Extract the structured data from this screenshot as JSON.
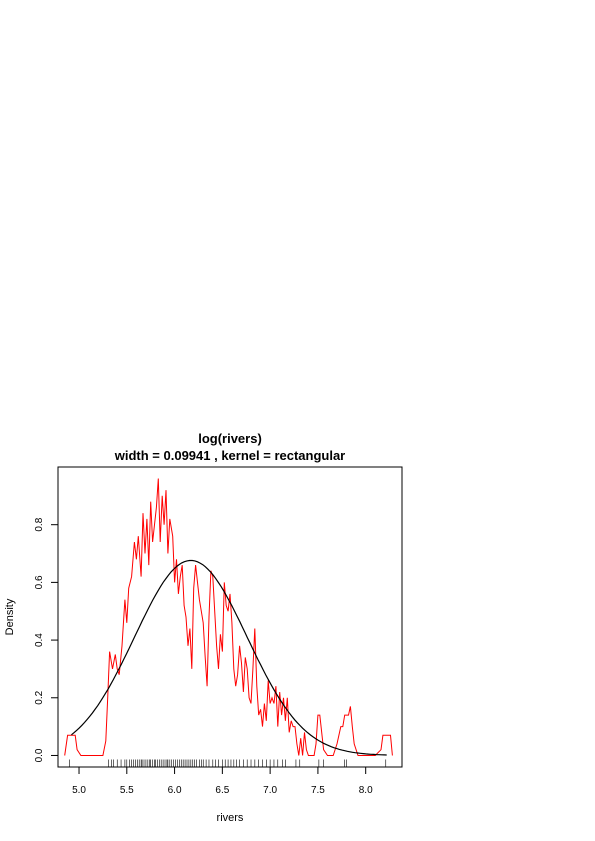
{
  "chart_data": {
    "type": "line",
    "title": "log(rivers)",
    "subtitle": "width = 0.09941 , kernel = rectangular",
    "xlabel": "rivers",
    "ylabel": "Density",
    "xlim": [
      4.78,
      8.38
    ],
    "ylim": [
      -0.04,
      1.0
    ],
    "x_ticks": [
      "5.0",
      "5.5",
      "6.0",
      "6.5",
      "7.0",
      "7.5",
      "8.0"
    ],
    "y_ticks": [
      "0.0",
      "0.2",
      "0.4",
      "0.6",
      "0.8"
    ],
    "grid": false,
    "series": [
      {
        "color": "#ff0000",
        "kind": "kernel-density",
        "x": [
          4.85,
          4.88,
          4.92,
          4.94,
          4.96,
          4.98,
          5.02,
          5.25,
          5.28,
          5.3,
          5.32,
          5.35,
          5.38,
          5.4,
          5.42,
          5.45,
          5.48,
          5.5,
          5.52,
          5.55,
          5.58,
          5.6,
          5.62,
          5.65,
          5.67,
          5.69,
          5.71,
          5.73,
          5.75,
          5.77,
          5.79,
          5.81,
          5.83,
          5.85,
          5.87,
          5.89,
          5.91,
          5.93,
          5.95,
          5.98,
          6.0,
          6.02,
          6.04,
          6.06,
          6.08,
          6.1,
          6.12,
          6.14,
          6.16,
          6.18,
          6.2,
          6.22,
          6.24,
          6.26,
          6.28,
          6.3,
          6.32,
          6.34,
          6.36,
          6.38,
          6.4,
          6.42,
          6.44,
          6.46,
          6.48,
          6.5,
          6.52,
          6.54,
          6.56,
          6.58,
          6.6,
          6.62,
          6.64,
          6.66,
          6.68,
          6.7,
          6.72,
          6.74,
          6.76,
          6.78,
          6.8,
          6.82,
          6.84,
          6.86,
          6.88,
          6.9,
          6.92,
          6.94,
          6.96,
          6.98,
          7.0,
          7.02,
          7.04,
          7.06,
          7.08,
          7.1,
          7.12,
          7.14,
          7.16,
          7.18,
          7.2,
          7.22,
          7.24,
          7.26,
          7.28,
          7.3,
          7.32,
          7.34,
          7.36,
          7.38,
          7.4,
          7.42,
          7.44,
          7.46,
          7.48,
          7.5,
          7.52,
          7.54,
          7.56,
          7.6,
          7.66,
          7.7,
          7.74,
          7.76,
          7.78,
          7.82,
          7.84,
          7.86,
          7.88,
          7.92,
          7.98,
          8.1,
          8.16,
          8.18,
          8.22,
          8.24,
          8.26,
          8.28
        ],
        "y": [
          0.0,
          0.07,
          0.07,
          0.07,
          0.07,
          0.02,
          0.0,
          0.0,
          0.05,
          0.2,
          0.36,
          0.3,
          0.35,
          0.3,
          0.28,
          0.38,
          0.54,
          0.46,
          0.58,
          0.62,
          0.74,
          0.68,
          0.76,
          0.62,
          0.84,
          0.7,
          0.82,
          0.66,
          0.88,
          0.74,
          0.8,
          0.86,
          0.96,
          0.74,
          0.9,
          0.8,
          0.92,
          0.7,
          0.82,
          0.76,
          0.6,
          0.68,
          0.56,
          0.62,
          0.66,
          0.52,
          0.48,
          0.38,
          0.44,
          0.3,
          0.58,
          0.66,
          0.6,
          0.54,
          0.5,
          0.46,
          0.34,
          0.24,
          0.48,
          0.64,
          0.62,
          0.5,
          0.38,
          0.3,
          0.42,
          0.36,
          0.6,
          0.52,
          0.5,
          0.56,
          0.46,
          0.3,
          0.24,
          0.28,
          0.38,
          0.32,
          0.22,
          0.34,
          0.3,
          0.2,
          0.18,
          0.3,
          0.44,
          0.24,
          0.14,
          0.16,
          0.1,
          0.18,
          0.12,
          0.26,
          0.18,
          0.2,
          0.18,
          0.24,
          0.1,
          0.22,
          0.14,
          0.2,
          0.12,
          0.2,
          0.08,
          0.12,
          0.1,
          0.1,
          0.04,
          0.0,
          0.06,
          0.0,
          0.08,
          0.02,
          0.0,
          0.0,
          0.0,
          0.0,
          0.04,
          0.14,
          0.14,
          0.08,
          0.02,
          0.0,
          0.0,
          0.04,
          0.1,
          0.1,
          0.14,
          0.14,
          0.17,
          0.1,
          0.04,
          0.0,
          0.0,
          0.0,
          0.02,
          0.07,
          0.07,
          0.07,
          0.07,
          0.0
        ]
      },
      {
        "color": "#000000",
        "kind": "normal-curve",
        "mean": 6.17,
        "sd": 0.59,
        "x_range": [
          4.92,
          8.22
        ]
      }
    ],
    "rug": [
      4.9,
      5.31,
      5.34,
      5.36,
      5.4,
      5.44,
      5.48,
      5.5,
      5.53,
      5.55,
      5.57,
      5.59,
      5.61,
      5.63,
      5.65,
      5.66,
      5.68,
      5.7,
      5.72,
      5.74,
      5.75,
      5.77,
      5.79,
      5.8,
      5.82,
      5.84,
      5.86,
      5.88,
      5.9,
      5.92,
      5.93,
      5.95,
      5.97,
      5.99,
      6.01,
      6.03,
      6.05,
      6.07,
      6.09,
      6.11,
      6.13,
      6.15,
      6.17,
      6.19,
      6.21,
      6.23,
      6.26,
      6.28,
      6.3,
      6.33,
      6.36,
      6.4,
      6.43,
      6.46,
      6.5,
      6.53,
      6.56,
      6.59,
      6.62,
      6.65,
      6.68,
      6.72,
      6.76,
      6.8,
      6.84,
      6.88,
      6.92,
      6.96,
      7.0,
      7.04,
      7.08,
      7.13,
      7.16,
      7.27,
      7.31,
      7.51,
      7.56,
      7.78,
      7.8,
      8.21
    ]
  }
}
